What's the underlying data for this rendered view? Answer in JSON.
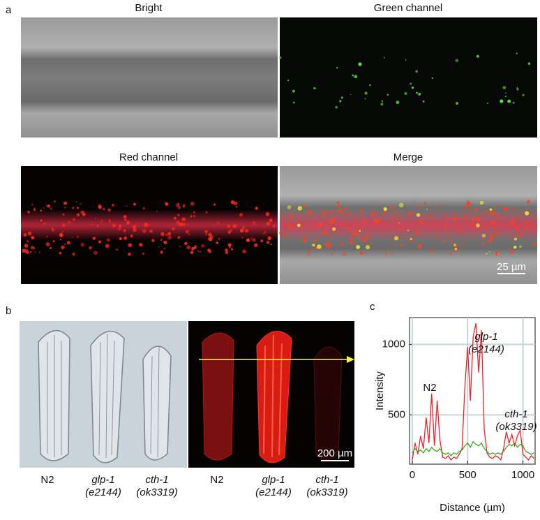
{
  "panel_a": {
    "label": "a",
    "titles": [
      "Bright",
      "Green channel",
      "Red channel",
      "Merge"
    ],
    "scale_bar": "25 µm"
  },
  "panel_b": {
    "label": "b",
    "strains": [
      {
        "name": "N2"
      },
      {
        "name": "glp-1",
        "allele": "(e2144)"
      },
      {
        "name": "cth-1",
        "allele": "(ok3319)"
      }
    ],
    "scale_bar": "200 µm"
  },
  "chart_data": {
    "type": "line",
    "panel_label": "c",
    "xlabel": "Distance (µm)",
    "ylabel": "Intensity",
    "x": [
      0,
      25,
      50,
      75,
      100,
      125,
      150,
      175,
      200,
      225,
      250,
      275,
      300,
      325,
      350,
      375,
      400,
      425,
      450,
      475,
      500,
      525,
      550,
      575,
      600,
      625,
      650,
      675,
      700,
      725,
      750,
      775,
      800,
      825,
      850,
      875,
      900,
      925,
      950,
      975,
      1000,
      1025,
      1050,
      1075,
      1100
    ],
    "series": [
      {
        "name": "red",
        "color": "#e8222a",
        "values": [
          180,
          300,
          220,
          350,
          260,
          480,
          300,
          650,
          280,
          600,
          320,
          200,
          190,
          210,
          180,
          200,
          190,
          220,
          260,
          700,
          980,
          600,
          1050,
          1150,
          800,
          1100,
          400,
          230,
          200,
          190,
          210,
          200,
          180,
          260,
          380,
          300,
          360,
          280,
          350,
          390,
          220,
          200,
          180,
          210,
          190
        ]
      },
      {
        "name": "green",
        "color": "#3aa520",
        "values": [
          230,
          260,
          240,
          250,
          230,
          260,
          240,
          270,
          250,
          240,
          260,
          230,
          220,
          230,
          210,
          230,
          220,
          240,
          250,
          280,
          300,
          270,
          310,
          290,
          280,
          300,
          260,
          240,
          220,
          230,
          220,
          230,
          220,
          240,
          270,
          290,
          280,
          300,
          270,
          290,
          280,
          240,
          230,
          220,
          230
        ]
      }
    ],
    "xlim": [
      -25,
      1110
    ],
    "ylim": [
      150,
      1190
    ],
    "xticks": [
      0,
      500,
      1000
    ],
    "yticks": [
      500,
      1000
    ],
    "grid": true,
    "annotations": [
      {
        "lines": [
          "N2"
        ]
      },
      {
        "lines": [
          "glp-1",
          "(e2144)"
        ]
      },
      {
        "lines": [
          "cth-1",
          "(ok3319)"
        ]
      }
    ]
  }
}
